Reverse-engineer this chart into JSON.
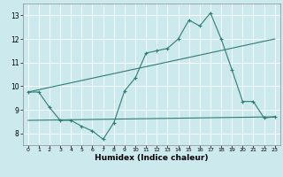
{
  "title": "",
  "xlabel": "Humidex (Indice chaleur)",
  "xlim": [
    -0.5,
    23.5
  ],
  "ylim": [
    7.5,
    13.5
  ],
  "xticks": [
    0,
    1,
    2,
    3,
    4,
    5,
    6,
    7,
    8,
    9,
    10,
    11,
    12,
    13,
    14,
    15,
    16,
    17,
    18,
    19,
    20,
    21,
    22,
    23
  ],
  "yticks": [
    8,
    9,
    10,
    11,
    12,
    13
  ],
  "bg_color": "#cce9ee",
  "line_color": "#2e7d72",
  "grid_color": "#ffffff",
  "line1_x": [
    0,
    1,
    2,
    3,
    4,
    5,
    6,
    7,
    8,
    9,
    10,
    11,
    12,
    13,
    14,
    15,
    16,
    17,
    18,
    19,
    20,
    21,
    22,
    23
  ],
  "line1_y": [
    9.75,
    9.75,
    9.1,
    8.55,
    8.55,
    8.3,
    8.1,
    7.75,
    8.45,
    9.8,
    10.35,
    11.4,
    11.5,
    11.6,
    12.0,
    12.8,
    12.55,
    13.1,
    12.0,
    10.7,
    9.35,
    9.35,
    8.65,
    8.7
  ],
  "line2_x": [
    0,
    23
  ],
  "line2_y": [
    9.75,
    12.0
  ],
  "line3_x": [
    0,
    23
  ],
  "line3_y": [
    8.55,
    8.7
  ],
  "figsize": [
    3.2,
    2.0
  ],
  "dpi": 100
}
